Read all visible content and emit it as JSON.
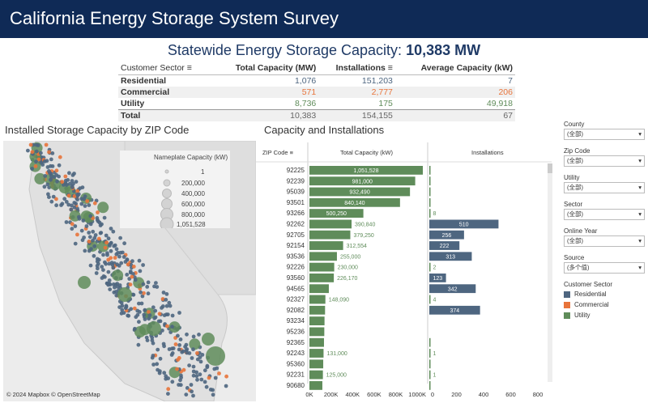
{
  "header": {
    "title": "California Energy Storage System Survey"
  },
  "kpi": {
    "label": "Statewide Energy Storage Capacity:",
    "value": "10,383 MW"
  },
  "summary": {
    "headers": [
      "Customer Sector",
      "Total Capacity (MW)",
      "Installations",
      "Average Capacity (kW)"
    ],
    "rows": [
      {
        "sector": "Residential",
        "capacity": "1,076",
        "installs": "151,203",
        "avg": "7"
      },
      {
        "sector": "Commercial",
        "capacity": "571",
        "installs": "2,777",
        "avg": "206"
      },
      {
        "sector": "Utility",
        "capacity": "8,736",
        "installs": "175",
        "avg": "49,918"
      },
      {
        "sector": "Total",
        "capacity": "10,383",
        "installs": "154,155",
        "avg": "67"
      }
    ]
  },
  "map": {
    "title": "Installed Storage Capacity by ZIP Code",
    "legend_title": "Nameplate Capacity (kW)",
    "legend_values": [
      "1",
      "200,000",
      "400,000",
      "600,000",
      "800,000",
      "1,051,528"
    ],
    "credit": "© 2024 Mapbox © OpenStreetMap"
  },
  "chart": {
    "title": "Capacity and Installations",
    "zip_header": "ZIP Code",
    "cap_header": "Total Capacity (kW)",
    "inst_header": "Installations",
    "cap_ticks": [
      "0K",
      "200K",
      "400K",
      "600K",
      "800K",
      "1000K"
    ],
    "inst_ticks": [
      "0",
      "200",
      "400",
      "600",
      "800"
    ]
  },
  "chart_data": {
    "type": "bar",
    "title": "Capacity and Installations",
    "categories": [
      "92225",
      "92239",
      "95039",
      "93501",
      "93266",
      "92262",
      "92705",
      "92154",
      "93536",
      "92226",
      "93560",
      "94565",
      "92327",
      "92082",
      "93234",
      "95236",
      "92365",
      "92243",
      "95360",
      "92231",
      "90680"
    ],
    "series": [
      {
        "name": "Total Capacity (kW)",
        "values": [
          1051528,
          981000,
          932490,
          840140,
          500250,
          390840,
          379250,
          312554,
          255000,
          230000,
          226170,
          180000,
          148090,
          145000,
          140000,
          138000,
          135000,
          131000,
          128000,
          125000,
          120000
        ],
        "labels": [
          "1,051,528",
          "981,000",
          "932,490",
          "840,140",
          "500,250",
          "390,840",
          "379,250",
          "312,554",
          "255,000",
          "230,000",
          "226,170",
          "",
          "148,090",
          "",
          "",
          "",
          "",
          "131,000",
          "",
          "125,000",
          ""
        ]
      },
      {
        "name": "Installations",
        "values": [
          2,
          1,
          1,
          1,
          8,
          510,
          256,
          222,
          313,
          2,
          123,
          342,
          4,
          374,
          0,
          0,
          1,
          1,
          6,
          1,
          3
        ],
        "labels": [
          "",
          "",
          "",
          "",
          "8",
          "510",
          "256",
          "222",
          "313",
          "2",
          "123",
          "342",
          "4",
          "374",
          "",
          "",
          "",
          "1",
          "",
          "1",
          ""
        ]
      }
    ],
    "xlim_capacity": [
      0,
      1051528
    ],
    "xlim_installations": [
      0,
      800
    ]
  },
  "filters": [
    {
      "label": "County",
      "value": "(全部)"
    },
    {
      "label": "Zip Code",
      "value": "(全部)"
    },
    {
      "label": "Utility",
      "value": "(全部)"
    },
    {
      "label": "Sector",
      "value": "(全部)"
    },
    {
      "label": "Online Year",
      "value": "(全部)"
    },
    {
      "label": "Source",
      "value": "(多个值)"
    }
  ],
  "sector_legend": {
    "title": "Customer Sector",
    "items": [
      {
        "name": "Residential",
        "color": "#4e6680"
      },
      {
        "name": "Commercial",
        "color": "#e8743b"
      },
      {
        "name": "Utility",
        "color": "#5f8c5a"
      }
    ]
  },
  "colors": {
    "bar": "#5f8c5a",
    "inst_bar": "#4e6680",
    "commercial": "#e8743b"
  }
}
